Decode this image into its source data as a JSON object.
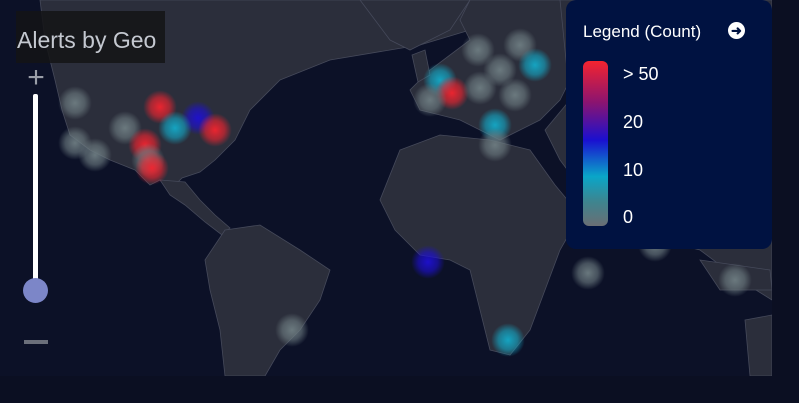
{
  "title": "Alerts by Geo",
  "zoom_controls": {
    "zoom_in": "+",
    "zoom_level": 0.05
  },
  "legend": {
    "title": "Legend (Count)",
    "expand_icon": "arrow-right-circle-icon",
    "labels": [
      "> 50",
      "20",
      "10",
      "0"
    ],
    "colors": {
      "high": "#f4242f",
      "mid": "#1a10d0",
      "low": "#0aa6c8",
      "zero": "#6a6e74"
    }
  },
  "colors": {
    "ocean": "#0c1127",
    "land": "#2b2e3b",
    "panel": "#001241"
  }
}
